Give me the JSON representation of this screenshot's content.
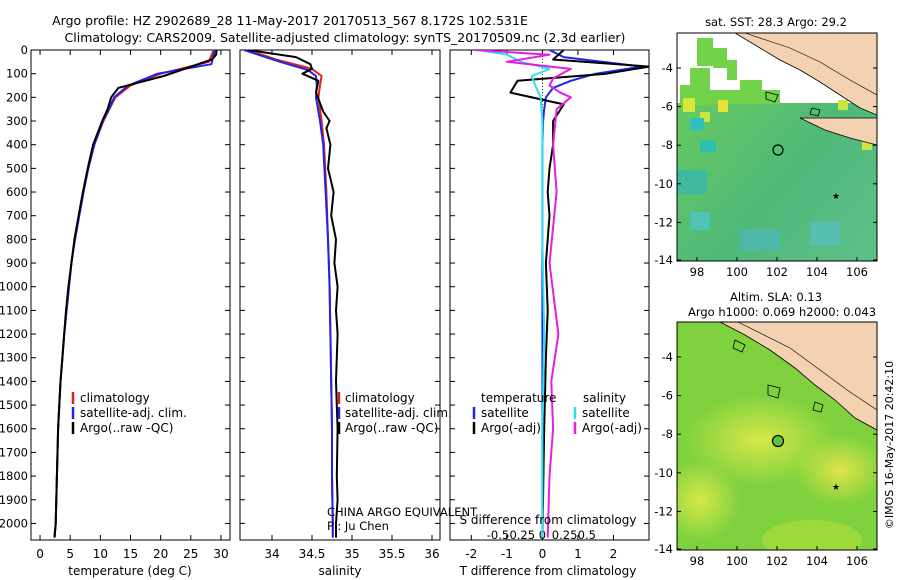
{
  "header": {
    "line1": "Argo profile: HZ 2902689_28 11-May-2017 20170513_567 8.172S 102.531E",
    "line2": "Climatology: CARS2009. Satellite-adjusted climatology: synTS_20170509.nc (2.3d earlier)"
  },
  "colors": {
    "climatology": "#e0201c",
    "satellite": "#1f25e6",
    "argo": "#000000",
    "sat_salinity": "#2fe0ee",
    "argo_salinity": "#e51ee0"
  },
  "chart_data": [
    {
      "id": "temperature",
      "type": "line",
      "xlabel": "temperature (deg C)",
      "ylim": [
        0,
        2070
      ],
      "xlim": [
        -1.5,
        31.5
      ],
      "xticks": [
        0,
        5,
        10,
        15,
        20,
        25,
        30
      ],
      "yticks": [
        0,
        100,
        200,
        300,
        400,
        500,
        600,
        700,
        800,
        900,
        1000,
        1100,
        1200,
        1300,
        1400,
        1500,
        1600,
        1700,
        1800,
        1900,
        2000
      ],
      "legend": {
        "placement": "lower-left",
        "entries": [
          "climatology",
          "satellite-adj. clim.",
          "Argo(..raw -QC)"
        ]
      },
      "series": [
        {
          "name": "climatology",
          "color_key": "climatology",
          "x": [
            28.8,
            28.0,
            20.0,
            15.0,
            12.5,
            11.5,
            10.5,
            9.0,
            8.0,
            7.2,
            6.5,
            5.8,
            5.2,
            4.8,
            4.4,
            4.0,
            3.7,
            3.4,
            3.2,
            3.0,
            2.8,
            2.6,
            2.4
          ],
          "y": [
            0,
            50,
            100,
            150,
            200,
            250,
            300,
            400,
            500,
            600,
            700,
            800,
            900,
            1000,
            1100,
            1200,
            1300,
            1400,
            1500,
            1600,
            1800,
            2000,
            2060
          ]
        },
        {
          "name": "satellite-adj. clim.",
          "color_key": "satellite",
          "x": [
            29.0,
            28.4,
            19.5,
            14.6,
            12.3,
            11.4,
            10.4,
            9.0,
            8.0,
            7.2,
            6.5,
            5.8,
            5.2,
            4.8,
            4.4,
            4.0,
            3.7,
            3.4,
            3.2,
            3.0,
            2.8,
            2.6,
            2.4
          ],
          "y": [
            0,
            60,
            100,
            150,
            200,
            250,
            300,
            400,
            500,
            600,
            700,
            800,
            900,
            1000,
            1100,
            1200,
            1300,
            1400,
            1500,
            1600,
            1800,
            2000,
            2060
          ]
        },
        {
          "name": "Argo(..raw -QC)",
          "color_key": "argo",
          "x": [
            29.3,
            29.2,
            28.5,
            20.5,
            13.0,
            11.8,
            11.2,
            10.3,
            8.8,
            7.9,
            7.1,
            6.4,
            5.7,
            5.2,
            4.7,
            4.3,
            4.0,
            3.7,
            3.4,
            3.2,
            3.0,
            2.8,
            2.6,
            2.4
          ],
          "y": [
            0,
            20,
            40,
            110,
            160,
            200,
            250,
            300,
            400,
            500,
            600,
            700,
            800,
            900,
            1000,
            1100,
            1200,
            1300,
            1400,
            1500,
            1600,
            1800,
            2000,
            2060
          ]
        }
      ]
    },
    {
      "id": "salinity",
      "type": "line",
      "xlabel": "salinity",
      "ylim": [
        0,
        2070
      ],
      "xlim": [
        33.6,
        36.1
      ],
      "xticks": [
        34,
        34.5,
        35,
        35.5,
        36
      ],
      "legend": {
        "placement": "lower-right",
        "entries": [
          "climatology",
          "satellite-adj. clim.",
          "Argo(..raw -QC)"
        ]
      },
      "annotation": [
        "CHINA ARGO EQUIVALENT",
        "PI: Ju Chen"
      ],
      "series": [
        {
          "name": "climatology",
          "color_key": "climatology",
          "x": [
            33.7,
            34.05,
            34.5,
            34.62,
            34.6,
            34.58,
            34.62,
            34.65,
            34.68,
            34.7,
            34.72,
            34.73,
            34.74,
            34.75,
            34.75,
            34.76,
            34.76
          ],
          "y": [
            0,
            40,
            80,
            110,
            150,
            200,
            300,
            400,
            600,
            800,
            1000,
            1200,
            1400,
            1600,
            1800,
            2000,
            2060
          ]
        },
        {
          "name": "satellite-adj. clim.",
          "color_key": "satellite",
          "x": [
            33.65,
            34.1,
            34.45,
            34.55,
            34.56,
            34.55,
            34.6,
            34.64,
            34.67,
            34.7,
            34.72,
            34.73,
            34.74,
            34.75,
            34.75,
            34.76,
            34.76
          ],
          "y": [
            0,
            50,
            85,
            110,
            150,
            200,
            300,
            400,
            600,
            800,
            1000,
            1200,
            1400,
            1600,
            1800,
            2000,
            2060
          ]
        },
        {
          "name": "Argo(..raw -QC)",
          "color_key": "argo",
          "x": [
            33.7,
            34.3,
            34.48,
            34.5,
            34.38,
            34.58,
            34.55,
            34.64,
            34.72,
            34.68,
            34.73,
            34.7,
            34.77,
            34.74,
            34.8,
            34.78,
            34.82,
            34.8,
            34.82,
            34.8,
            34.82,
            34.81,
            34.82,
            34.8,
            34.8
          ],
          "y": [
            0,
            30,
            60,
            80,
            100,
            130,
            180,
            260,
            300,
            330,
            400,
            500,
            600,
            700,
            800,
            900,
            1000,
            1100,
            1200,
            1400,
            1600,
            1800,
            1900,
            2000,
            2060
          ]
        }
      ]
    },
    {
      "id": "difference",
      "type": "line",
      "xlabel": "T difference from climatology",
      "xlabel_top": "S difference from climatology",
      "ylim": [
        0,
        2070
      ],
      "xlim": [
        -2.6,
        3.0
      ],
      "xticks": [
        -2,
        -1,
        0,
        1,
        2
      ],
      "xticks_top": [
        -0.5,
        -0.25,
        0,
        0.25,
        0.5
      ],
      "xticks_top_labels": [
        "-0.5",
        "-0.25",
        "0",
        "0.25",
        "0.5"
      ],
      "legend": {
        "placement": "lower",
        "temperature_title": "temperature",
        "salinity_title": "salinity",
        "temperature_entries": [
          "satellite",
          "Argo(-adj)"
        ],
        "salinity_entries": [
          "satellite",
          "Argo(-adj)"
        ]
      },
      "series": [
        {
          "name": "temperature satellite",
          "color_key": "satellite",
          "x": [
            0.2,
            0.6,
            2.8,
            1.5,
            0.8,
            0.3,
            0.1,
            0.05,
            0.02,
            0.0,
            0.0,
            0.0,
            0.0,
            0.0,
            0.0,
            0.0
          ],
          "y": [
            0,
            30,
            70,
            100,
            130,
            160,
            200,
            250,
            300,
            400,
            600,
            800,
            1200,
            1600,
            2000,
            2060
          ]
        },
        {
          "name": "temperature Argo(-adj)",
          "color_key": "argo",
          "x": [
            0.6,
            0.3,
            3.0,
            1.8,
            -0.7,
            -0.9,
            0.6,
            0.3,
            0.3,
            0.2,
            0.15,
            0.2,
            0.1,
            0.15,
            0.1,
            0.05,
            0.0
          ],
          "y": [
            0,
            40,
            70,
            100,
            130,
            180,
            230,
            300,
            400,
            500,
            600,
            700,
            900,
            1100,
            1300,
            1600,
            2060
          ]
        },
        {
          "name": "salinity satellite",
          "color_key": "sat_salinity",
          "x": [
            -1.8,
            -1.0,
            -0.6,
            0.2,
            -0.3,
            -0.2,
            -0.05,
            0.0,
            0.0,
            0.0,
            0.05,
            0.0,
            0.0
          ],
          "y": [
            0,
            20,
            50,
            80,
            110,
            150,
            200,
            300,
            500,
            800,
            1200,
            1600,
            2060
          ]
        },
        {
          "name": "salinity Argo(-adj)",
          "color_key": "argo_salinity",
          "x": [
            -1.9,
            0.2,
            -1.0,
            0.8,
            0.3,
            0.2,
            0.5,
            0.8,
            0.4,
            0.3,
            0.4,
            0.2,
            0.45,
            0.25,
            0.3,
            0.2,
            0.15
          ],
          "y": [
            0,
            20,
            50,
            80,
            120,
            150,
            180,
            200,
            250,
            400,
            600,
            900,
            1200,
            1400,
            1600,
            1800,
            2060
          ]
        }
      ]
    }
  ],
  "maps": [
    {
      "id": "sst-map",
      "title": "sat. SST: 28.3 Argo: 29.2",
      "xticks": [
        "98",
        "100",
        "102",
        "104",
        "106"
      ],
      "yticks": [
        "-4",
        "-6",
        "-8",
        "-10",
        "-12",
        "-14"
      ],
      "argo_position": {
        "lon": 102.531,
        "lat": -8.172
      }
    },
    {
      "id": "sla-map",
      "title_line1": "Altim. SLA: 0.13",
      "title_line2": "Argo h1000: 0.069 h2000: 0.043",
      "xticks": [
        "98",
        "100",
        "102",
        "104",
        "106"
      ],
      "yticks": [
        "-4",
        "-6",
        "-8",
        "-10",
        "-12",
        "-14"
      ],
      "argo_position": {
        "lon": 102.531,
        "lat": -8.172
      }
    }
  ],
  "credit": "©IMOS 16-May-2017 20:42:10"
}
